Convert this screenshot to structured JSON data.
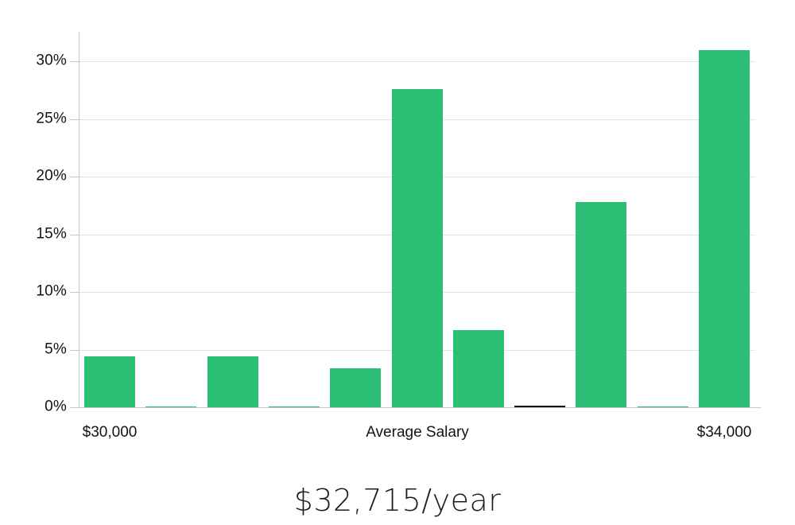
{
  "page": {
    "background": "#ffffff"
  },
  "chart_data": {
    "type": "bar",
    "title": "$32,715/year",
    "xlabel": "",
    "ylabel": "",
    "categories": [
      "$30,000",
      "",
      "",
      "",
      "",
      "Average Salary",
      "",
      "",
      "",
      "",
      "$34,000"
    ],
    "values": [
      4.4,
      0.1,
      4.4,
      0.1,
      3.4,
      27.6,
      6.7,
      0.15,
      17.8,
      0.1,
      31.0
    ],
    "bar_colors": [
      "#2cbe75",
      "#2cbe75",
      "#2cbe75",
      "#2cbe75",
      "#2cbe75",
      "#2cbe75",
      "#2cbe75",
      "#0c0c14",
      "#2cbe75",
      "#2cbe75",
      "#2cbe75"
    ],
    "x_axis_labels": [
      {
        "index": 0,
        "label": "$30,000"
      },
      {
        "index": 5,
        "label": "Average Salary"
      },
      {
        "index": 10,
        "label": "$34,000"
      }
    ],
    "yticks": [
      0,
      5,
      10,
      15,
      20,
      25,
      30
    ],
    "ytick_labels": [
      "0%",
      "5%",
      "10%",
      "15%",
      "20%",
      "25%",
      "30%"
    ],
    "ylim": [
      0,
      32.5
    ],
    "grid": "horizontal",
    "legend": "none",
    "colors": {
      "bar": "#2cbe75",
      "highlight_bar": "#0c0c14",
      "grid": "#e4e4e4",
      "axis": "#c6c6c6",
      "tick_label": "#141414",
      "title": "#1e1e1e"
    }
  }
}
